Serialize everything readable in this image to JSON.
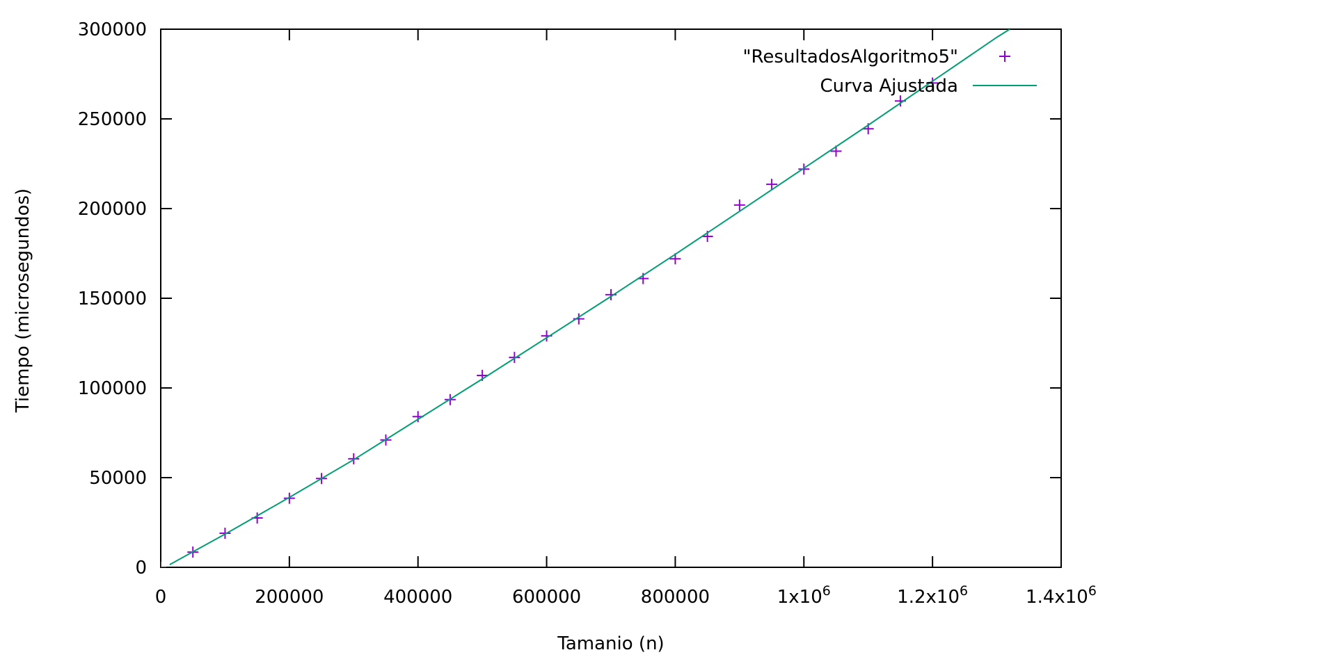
{
  "chart_data": {
    "type": "scatter",
    "xlabel": "Tamanio (n)",
    "ylabel": "Tiempo (microsegundos)",
    "xlim": [
      0,
      1400000
    ],
    "ylim": [
      0,
      300000
    ],
    "grid": false,
    "legend_position": "top-right",
    "x_ticks": [
      {
        "value": 0,
        "label": "0"
      },
      {
        "value": 200000,
        "label": "200000"
      },
      {
        "value": 400000,
        "label": "400000"
      },
      {
        "value": 600000,
        "label": "600000"
      },
      {
        "value": 800000,
        "label": "800000"
      },
      {
        "value": 1000000,
        "label": "1x10",
        "sup": "6"
      },
      {
        "value": 1200000,
        "label": "1.2x10",
        "sup": "6"
      },
      {
        "value": 1400000,
        "label": "1.4x10",
        "sup": "6"
      }
    ],
    "y_ticks": [
      {
        "value": 0,
        "label": "0"
      },
      {
        "value": 50000,
        "label": "50000"
      },
      {
        "value": 100000,
        "label": "100000"
      },
      {
        "value": 150000,
        "label": "150000"
      },
      {
        "value": 200000,
        "label": "200000"
      },
      {
        "value": 250000,
        "label": "250000"
      },
      {
        "value": 300000,
        "label": "300000"
      }
    ],
    "series": [
      {
        "name": "\"ResultadosAlgoritmo5\"",
        "kind": "points",
        "marker": "+",
        "color": "#9400d3",
        "x": [
          0,
          50000,
          100000,
          150000,
          200000,
          250000,
          300000,
          350000,
          400000,
          450000,
          500000,
          550000,
          600000,
          650000,
          700000,
          750000,
          800000,
          850000,
          900000,
          950000,
          1000000,
          1050000,
          1100000,
          1150000,
          1200000
        ],
        "y": [
          0,
          8500,
          19000,
          27500,
          38500,
          49500,
          60500,
          71000,
          84000,
          93500,
          107000,
          117000,
          129000,
          138500,
          152000,
          161000,
          172000,
          184500,
          202000,
          213500,
          222000,
          232000,
          244500,
          260000,
          270000
        ]
      },
      {
        "name": "Curva Ajustada",
        "kind": "line",
        "color": "#009e73",
        "x": [
          14000,
          100000,
          200000,
          300000,
          400000,
          500000,
          600000,
          700000,
          800000,
          900000,
          1000000,
          1100000,
          1200000,
          1300000,
          1320000
        ],
        "y": [
          1500,
          18500,
          39000,
          60000,
          82500,
          105000,
          128000,
          151000,
          174500,
          198500,
          222500,
          246500,
          271000,
          295500,
          300000
        ]
      }
    ]
  }
}
